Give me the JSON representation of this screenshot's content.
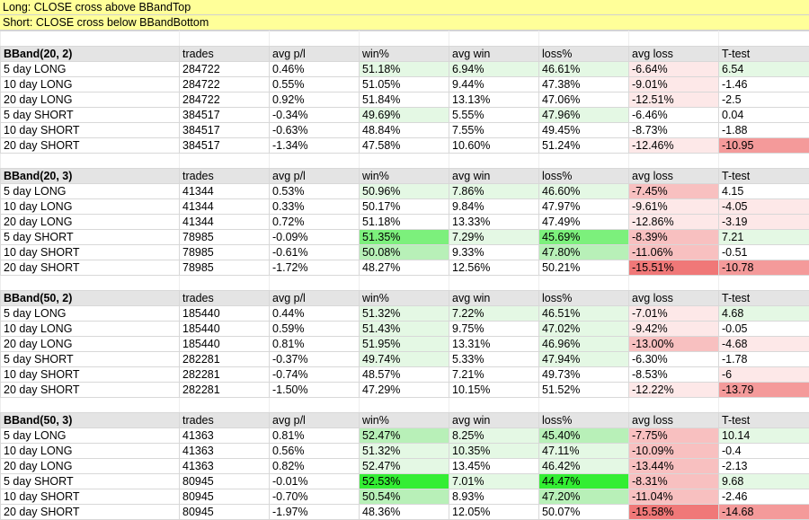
{
  "banner": {
    "long": "Long: CLOSE cross above BBandTop",
    "short": "Short: CLOSE cross below BBandBottom"
  },
  "columns": [
    "trades",
    "avg p/l",
    "win%",
    "avg win",
    "loss%",
    "avg loss",
    "T-test"
  ],
  "colors": {
    "green_light": "#e4f8e4",
    "green_mid": "#b8f0b8",
    "green_strong": "#7cf07c",
    "green_max": "#33ee33",
    "red_light": "#fde8e8",
    "red_mid": "#f8c0c0",
    "red_strong": "#f49a9a",
    "red_max": "#f07878",
    "header_gray": "#e4e4e4",
    "banner_yellow": "#ffff99"
  },
  "groups": [
    {
      "label": "BBand(20, 2)",
      "rows": [
        {
          "name": "5 day LONG",
          "trades": "284722",
          "pl": "0.46%",
          "win": "51.18%",
          "avgwin": "6.94%",
          "loss": "46.61%",
          "avgloss": "-6.64%",
          "t": "6.54",
          "c": [
            "",
            "",
            "g1",
            "g1",
            "g1",
            "r1",
            "g1"
          ]
        },
        {
          "name": "10 day LONG",
          "trades": "284722",
          "pl": "0.55%",
          "win": "51.05%",
          "avgwin": "9.44%",
          "loss": "47.38%",
          "avgloss": "-9.01%",
          "t": "-1.46",
          "c": [
            "",
            "",
            "",
            "",
            "",
            "r1",
            ""
          ]
        },
        {
          "name": "20 day LONG",
          "trades": "284722",
          "pl": "0.92%",
          "win": "51.84%",
          "avgwin": "13.13%",
          "loss": "47.06%",
          "avgloss": "-12.51%",
          "t": "-2.5",
          "c": [
            "",
            "",
            "",
            "",
            "",
            "r1",
            ""
          ]
        },
        {
          "name": "5 day SHORT",
          "trades": "384517",
          "pl": "-0.34%",
          "win": "49.69%",
          "avgwin": "5.55%",
          "loss": "47.96%",
          "avgloss": "-6.46%",
          "t": "0.04",
          "c": [
            "",
            "",
            "g1",
            "",
            "g1",
            "",
            ""
          ]
        },
        {
          "name": "10 day SHORT",
          "trades": "384517",
          "pl": "-0.63%",
          "win": "48.84%",
          "avgwin": "7.55%",
          "loss": "49.45%",
          "avgloss": "-8.73%",
          "t": "-1.88",
          "c": [
            "",
            "",
            "",
            "",
            "",
            "",
            ""
          ]
        },
        {
          "name": "20 day SHORT",
          "trades": "384517",
          "pl": "-1.34%",
          "win": "47.58%",
          "avgwin": "10.60%",
          "loss": "51.24%",
          "avgloss": "-12.46%",
          "t": "-10.95",
          "c": [
            "",
            "",
            "",
            "",
            "",
            "r1",
            "r3"
          ]
        }
      ]
    },
    {
      "label": "BBand(20, 3)",
      "rows": [
        {
          "name": "5 day LONG",
          "trades": "41344",
          "pl": "0.53%",
          "win": "50.96%",
          "avgwin": "7.86%",
          "loss": "46.60%",
          "avgloss": "-7.45%",
          "t": "4.15",
          "c": [
            "",
            "",
            "g1",
            "g1",
            "g1",
            "r2",
            ""
          ]
        },
        {
          "name": "10 day LONG",
          "trades": "41344",
          "pl": "0.33%",
          "win": "50.17%",
          "avgwin": "9.84%",
          "loss": "47.97%",
          "avgloss": "-9.61%",
          "t": "-4.05",
          "c": [
            "",
            "",
            "",
            "",
            "",
            "r1",
            "r1"
          ]
        },
        {
          "name": "20 day LONG",
          "trades": "41344",
          "pl": "0.72%",
          "win": "51.18%",
          "avgwin": "13.33%",
          "loss": "47.49%",
          "avgloss": "-12.86%",
          "t": "-3.19",
          "c": [
            "",
            "",
            "",
            "",
            "",
            "r1",
            "r1"
          ]
        },
        {
          "name": "5 day SHORT",
          "trades": "78985",
          "pl": "-0.09%",
          "win": "51.35%",
          "avgwin": "7.29%",
          "loss": "45.69%",
          "avgloss": "-8.39%",
          "t": "7.21",
          "c": [
            "",
            "",
            "g3",
            "g1",
            "g3",
            "r2",
            "g1"
          ]
        },
        {
          "name": "10 day SHORT",
          "trades": "78985",
          "pl": "-0.61%",
          "win": "50.08%",
          "avgwin": "9.33%",
          "loss": "47.80%",
          "avgloss": "-11.06%",
          "t": "-0.51",
          "c": [
            "",
            "",
            "g2",
            "",
            "g2",
            "r2",
            ""
          ]
        },
        {
          "name": "20 day SHORT",
          "trades": "78985",
          "pl": "-1.72%",
          "win": "48.27%",
          "avgwin": "12.56%",
          "loss": "50.21%",
          "avgloss": "-15.51%",
          "t": "-10.78",
          "c": [
            "",
            "",
            "",
            "",
            "",
            "r4",
            "r3"
          ]
        }
      ]
    },
    {
      "label": "BBand(50, 2)",
      "rows": [
        {
          "name": "5 day LONG",
          "trades": "185440",
          "pl": "0.44%",
          "win": "51.32%",
          "avgwin": "7.22%",
          "loss": "46.51%",
          "avgloss": "-7.01%",
          "t": "4.68",
          "c": [
            "",
            "",
            "g1",
            "g1",
            "g1",
            "r1",
            "g1"
          ]
        },
        {
          "name": "10 day LONG",
          "trades": "185440",
          "pl": "0.59%",
          "win": "51.43%",
          "avgwin": "9.75%",
          "loss": "47.02%",
          "avgloss": "-9.42%",
          "t": "-0.05",
          "c": [
            "",
            "",
            "g1",
            "",
            "g1",
            "r1",
            ""
          ]
        },
        {
          "name": "20 day LONG",
          "trades": "185440",
          "pl": "0.81%",
          "win": "51.95%",
          "avgwin": "13.31%",
          "loss": "46.96%",
          "avgloss": "-13.00%",
          "t": "-4.68",
          "c": [
            "",
            "",
            "g1",
            "",
            "g1",
            "r2",
            "r1"
          ]
        },
        {
          "name": "5 day SHORT",
          "trades": "282281",
          "pl": "-0.37%",
          "win": "49.74%",
          "avgwin": "5.33%",
          "loss": "47.94%",
          "avgloss": "-6.30%",
          "t": "-1.78",
          "c": [
            "",
            "",
            "g1",
            "",
            "g1",
            "",
            ""
          ]
        },
        {
          "name": "10 day SHORT",
          "trades": "282281",
          "pl": "-0.74%",
          "win": "48.57%",
          "avgwin": "7.21%",
          "loss": "49.73%",
          "avgloss": "-8.53%",
          "t": "-6",
          "c": [
            "",
            "",
            "",
            "",
            "",
            "",
            "r1"
          ]
        },
        {
          "name": "20 day SHORT",
          "trades": "282281",
          "pl": "-1.50%",
          "win": "47.29%",
          "avgwin": "10.15%",
          "loss": "51.52%",
          "avgloss": "-12.22%",
          "t": "-13.79",
          "c": [
            "",
            "",
            "",
            "",
            "",
            "r1",
            "r3"
          ]
        }
      ]
    },
    {
      "label": "BBand(50, 3)",
      "rows": [
        {
          "name": "5 day LONG",
          "trades": "41363",
          "pl": "0.81%",
          "win": "52.47%",
          "avgwin": "8.25%",
          "loss": "45.40%",
          "avgloss": "-7.75%",
          "t": "10.14",
          "c": [
            "",
            "",
            "g2",
            "g1",
            "g2",
            "r2",
            "g1"
          ]
        },
        {
          "name": "10 day LONG",
          "trades": "41363",
          "pl": "0.56%",
          "win": "51.32%",
          "avgwin": "10.35%",
          "loss": "47.11%",
          "avgloss": "-10.09%",
          "t": "-0.4",
          "c": [
            "",
            "",
            "g1",
            "g1",
            "g1",
            "r2",
            ""
          ]
        },
        {
          "name": "20 day LONG",
          "trades": "41363",
          "pl": "0.82%",
          "win": "52.47%",
          "avgwin": "13.45%",
          "loss": "46.42%",
          "avgloss": "-13.44%",
          "t": "-2.13",
          "c": [
            "",
            "",
            "g1",
            "",
            "g1",
            "r2",
            ""
          ]
        },
        {
          "name": "5 day SHORT",
          "trades": "80945",
          "pl": "-0.01%",
          "win": "52.53%",
          "avgwin": "7.01%",
          "loss": "44.47%",
          "avgloss": "-8.31%",
          "t": "9.68",
          "c": [
            "",
            "",
            "g4",
            "g1",
            "g4",
            "r2",
            "g1"
          ]
        },
        {
          "name": "10 day SHORT",
          "trades": "80945",
          "pl": "-0.70%",
          "win": "50.54%",
          "avgwin": "8.93%",
          "loss": "47.20%",
          "avgloss": "-11.04%",
          "t": "-2.46",
          "c": [
            "",
            "",
            "g2",
            "",
            "g2",
            "r2",
            ""
          ]
        },
        {
          "name": "20 day SHORT",
          "trades": "80945",
          "pl": "-1.97%",
          "win": "48.36%",
          "avgwin": "12.05%",
          "loss": "50.07%",
          "avgloss": "-15.58%",
          "t": "-14.68",
          "c": [
            "",
            "",
            "",
            "",
            "",
            "r4",
            "r3"
          ]
        }
      ]
    }
  ]
}
